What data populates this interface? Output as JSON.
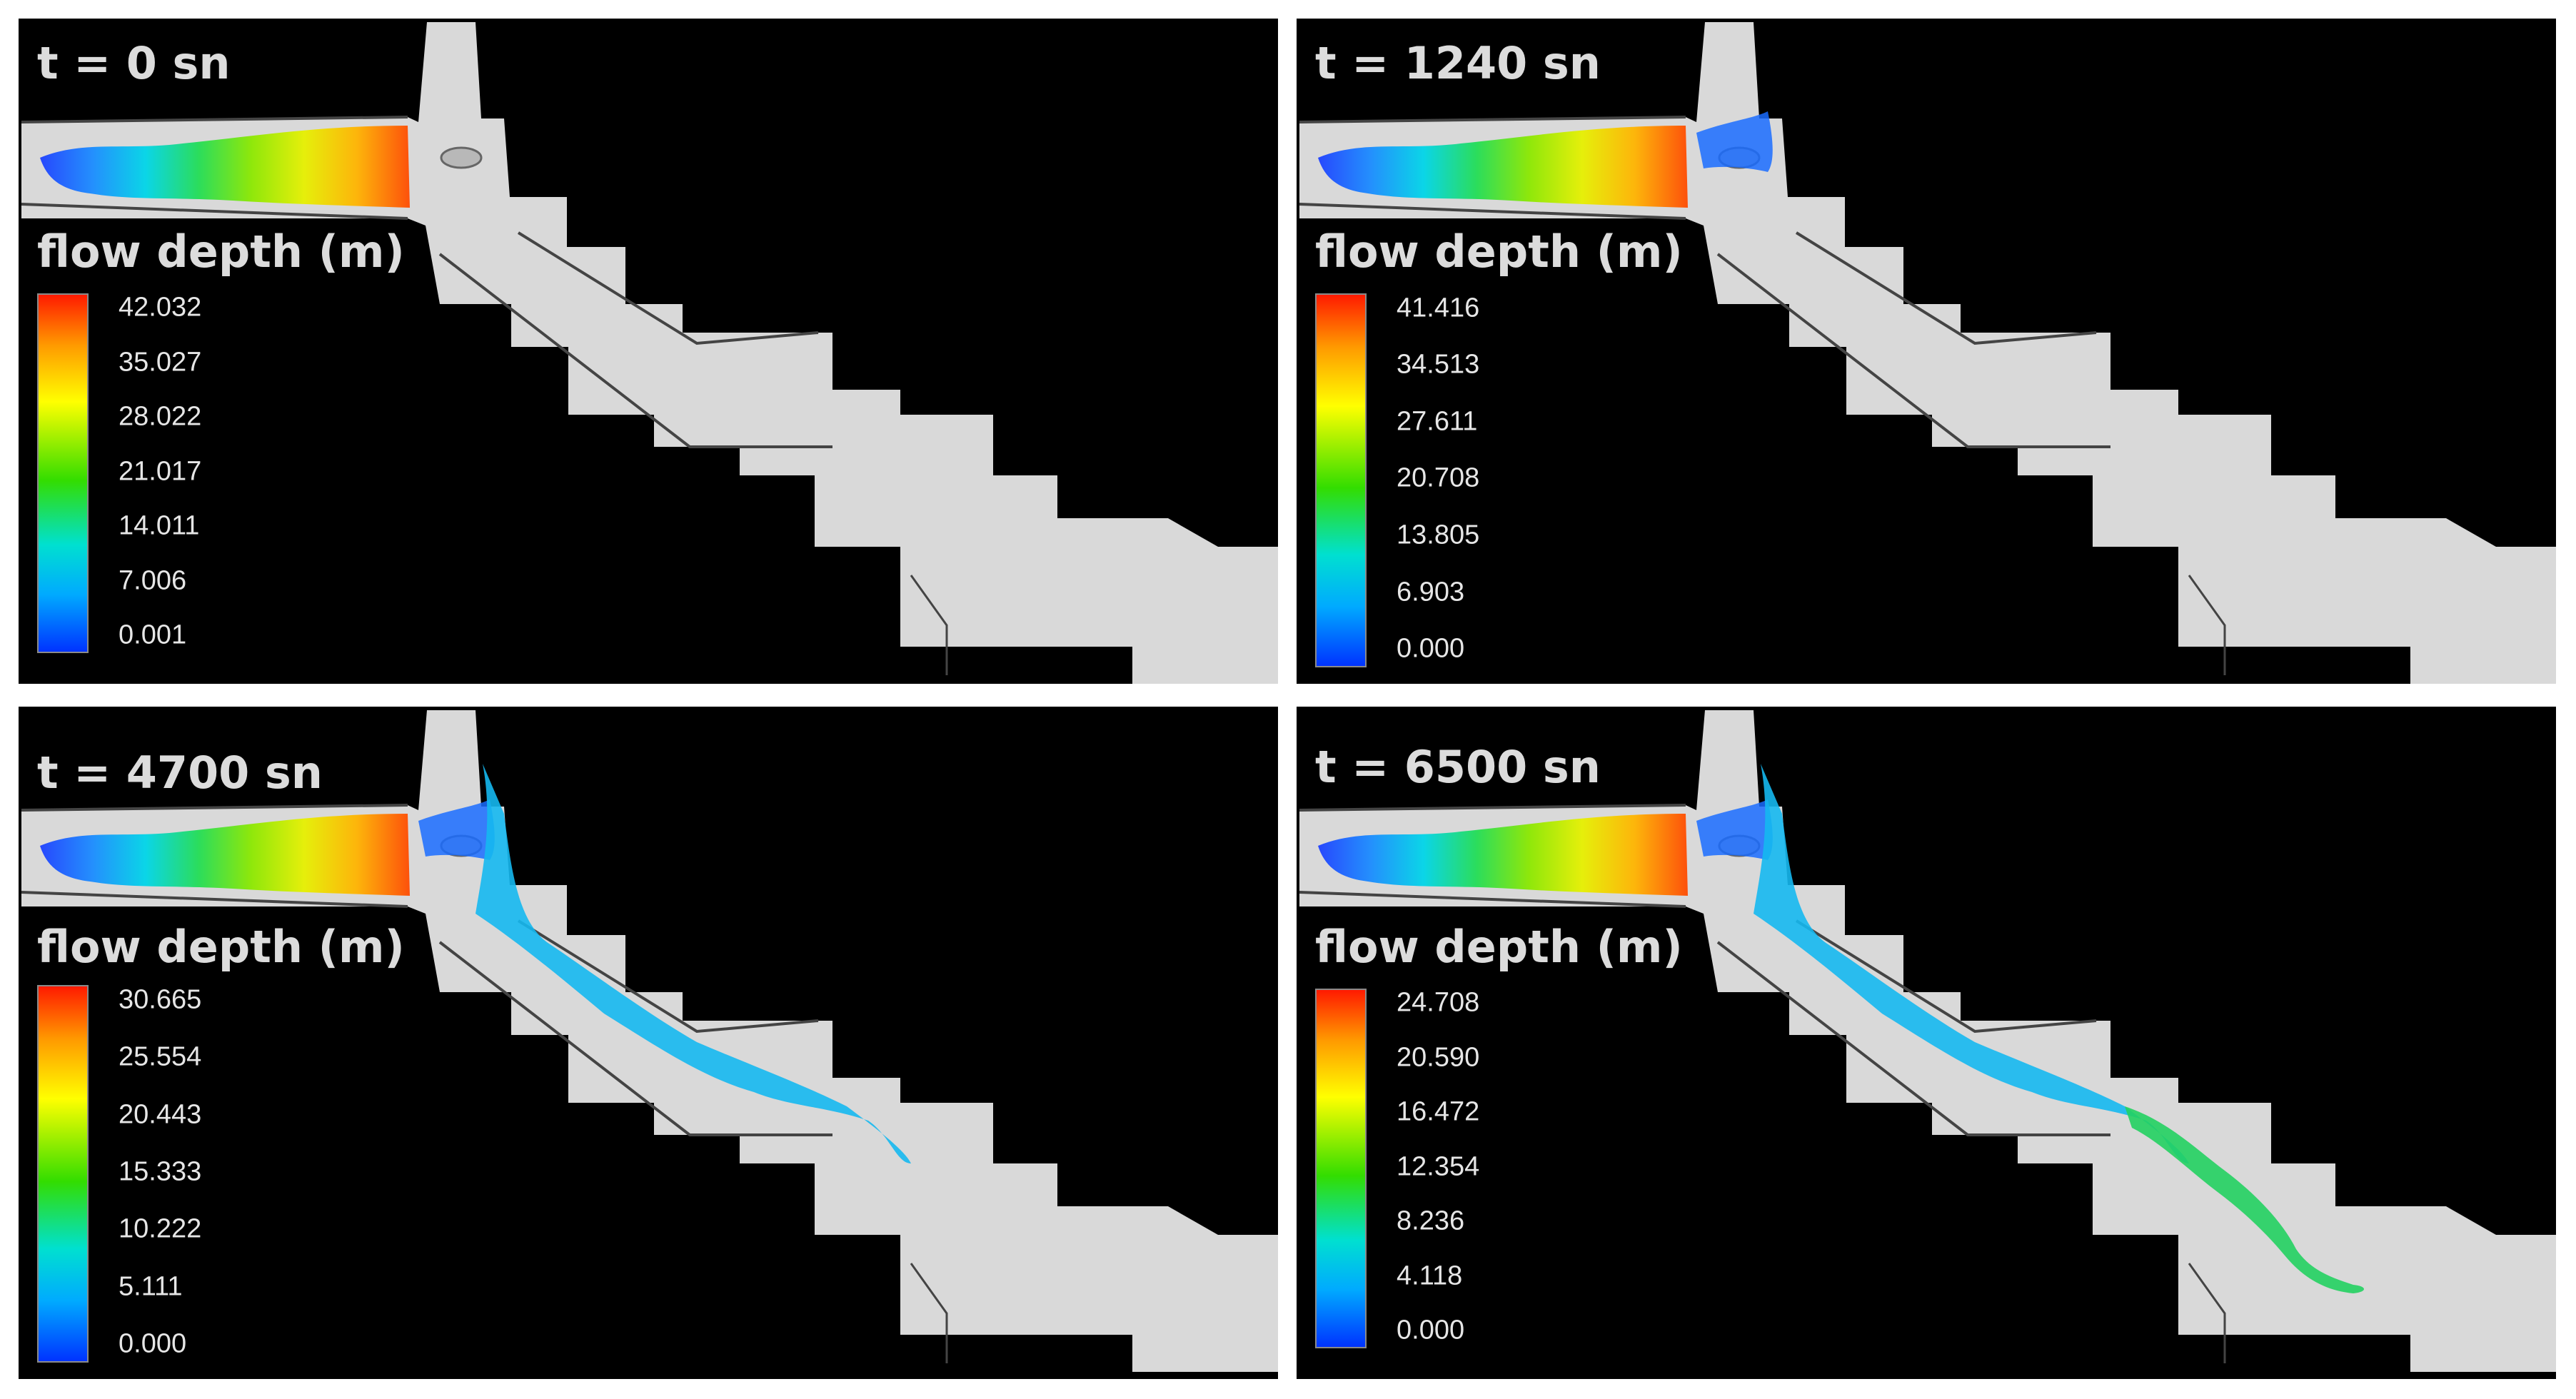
{
  "colors": {
    "background": "#000000",
    "terrain": "#d9d9d9",
    "boundary_line": "#444444",
    "text": "#dcdcdc"
  },
  "panels": [
    {
      "time_label": "t = 0 sn",
      "legend_title": "flow depth (m)",
      "ticks": [
        "42.032",
        "35.027",
        "28.022",
        "21.017",
        "14.011",
        "7.006",
        "0.001"
      ],
      "flow_stage": 0
    },
    {
      "time_label": "t = 1240 sn",
      "legend_title": "flow depth (m)",
      "ticks": [
        "41.416",
        "34.513",
        "27.611",
        "20.708",
        "13.805",
        "6.903",
        "0.000"
      ],
      "flow_stage": 1
    },
    {
      "time_label": "t = 4700 sn",
      "legend_title": "flow depth (m)",
      "ticks": [
        "30.665",
        "25.554",
        "20.443",
        "15.333",
        "10.222",
        "5.111",
        "0.000"
      ],
      "flow_stage": 2
    },
    {
      "time_label": "t = 6500 sn",
      "legend_title": "flow depth (m)",
      "ticks": [
        "24.708",
        "20.590",
        "16.472",
        "12.354",
        "8.236",
        "4.118",
        "0.000"
      ],
      "flow_stage": 3
    }
  ]
}
